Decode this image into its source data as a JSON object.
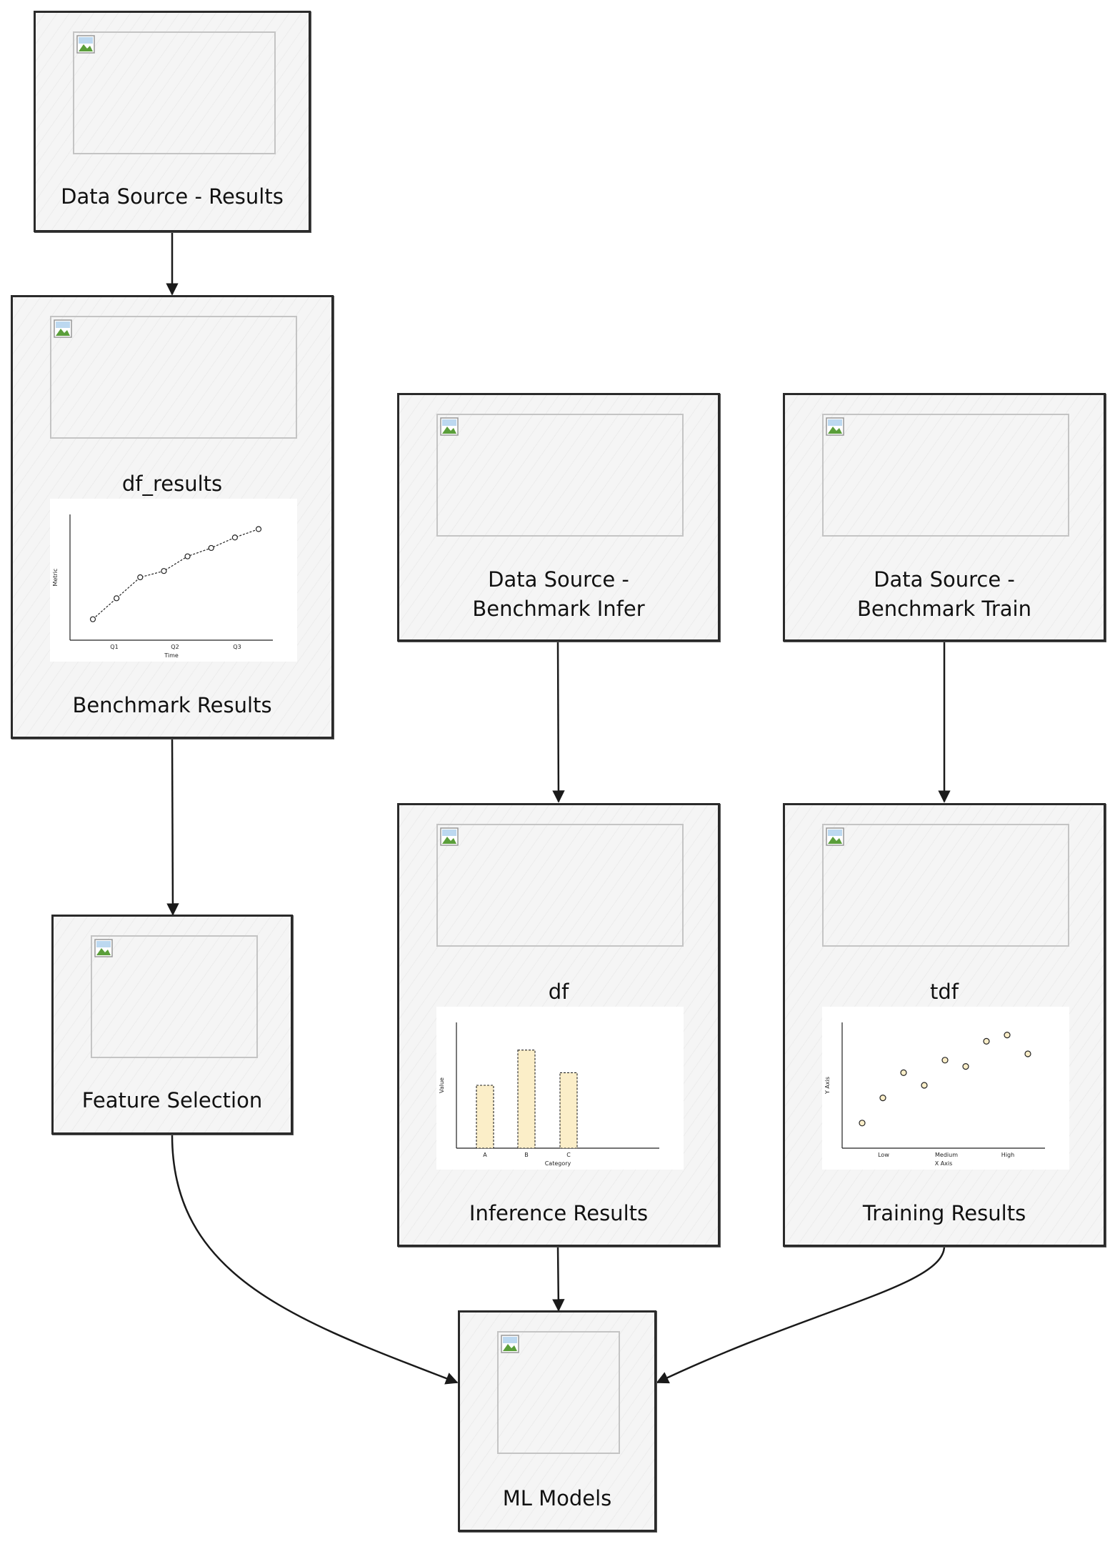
{
  "nodes": {
    "data_source_results": {
      "label": "Data Source - Results"
    },
    "benchmark_results": {
      "subtitle": "df_results",
      "label": "Benchmark Results"
    },
    "data_source_infer": {
      "label_line1": "Data Source -",
      "label_line2": "Benchmark Infer"
    },
    "data_source_train": {
      "label_line1": "Data Source -",
      "label_line2": "Benchmark Train"
    },
    "feature_selection": {
      "label": "Feature Selection"
    },
    "inference_results": {
      "subtitle": "df",
      "label": "Inference Results"
    },
    "training_results": {
      "subtitle": "tdf",
      "label": "Training Results"
    },
    "ml_models": {
      "label": "ML Models"
    }
  },
  "chart_data": [
    {
      "type": "line",
      "xlabel": "Time",
      "ylabel": "Metric",
      "x_tick_labels": [
        "Q1",
        "Q2",
        "Q3"
      ],
      "values": [
        1,
        2,
        3,
        3.3,
        4,
        4.4,
        4.9,
        5.3
      ],
      "ylim": [
        0,
        6
      ],
      "grid": false
    },
    {
      "type": "bar",
      "xlabel": "Category",
      "ylabel": "Value",
      "categories": [
        "A",
        "B",
        "C"
      ],
      "values": [
        5,
        7.8,
        6
      ],
      "ylim": [
        0,
        10
      ],
      "color": "#fbeec8",
      "grid": false
    },
    {
      "type": "scatter",
      "xlabel": "X Axis",
      "ylabel": "Y Axis",
      "x_tick_labels": [
        "Low",
        "Medium",
        "High"
      ],
      "points": [
        [
          0,
          2
        ],
        [
          1,
          4
        ],
        [
          2,
          6
        ],
        [
          3,
          5
        ],
        [
          4,
          7
        ],
        [
          5,
          6.5
        ],
        [
          6,
          8.5
        ],
        [
          7,
          9
        ],
        [
          8,
          7.5
        ]
      ],
      "ylim": [
        0,
        10
      ],
      "grid": false
    }
  ],
  "colors": {
    "border": "#2a2a2a",
    "node_fill": "#f5f5f5",
    "placeholder_border": "#c4c4c4",
    "bar_fill": "#fbeec8"
  }
}
